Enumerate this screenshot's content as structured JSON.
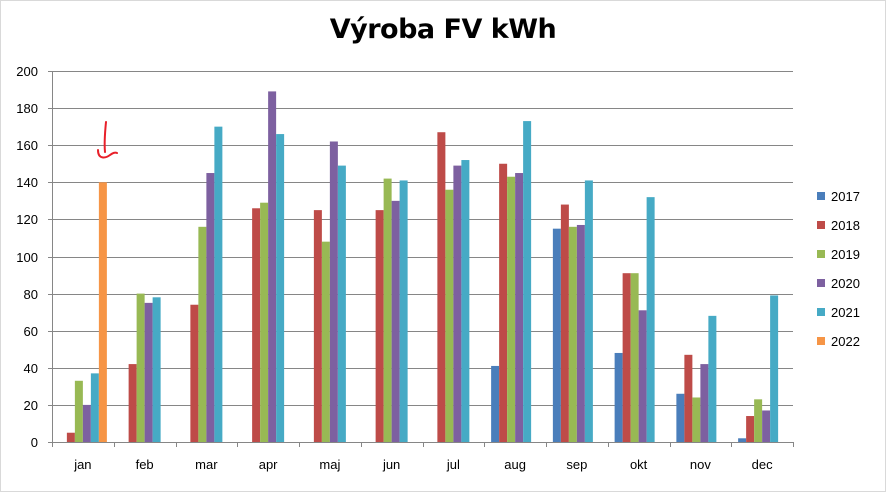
{
  "chart_data": {
    "type": "bar",
    "title": "Výroba FV kWh",
    "xlabel": "",
    "ylabel": "",
    "ylim": [
      0,
      200
    ],
    "yticks": [
      0,
      20,
      40,
      60,
      80,
      100,
      120,
      140,
      160,
      180,
      200
    ],
    "grid": true,
    "legend_position": "right",
    "categories": [
      "jan",
      "feb",
      "mar",
      "apr",
      "maj",
      "jun",
      "jul",
      "aug",
      "sep",
      "okt",
      "nov",
      "dec"
    ],
    "series": [
      {
        "name": "2017",
        "color": "#4a7ebb",
        "values": [
          0,
          0,
          0,
          0,
          0,
          0,
          0,
          41,
          115,
          48,
          26,
          2
        ]
      },
      {
        "name": "2018",
        "color": "#be4b48",
        "values": [
          5,
          42,
          74,
          126,
          125,
          125,
          167,
          150,
          128,
          91,
          47,
          14
        ]
      },
      {
        "name": "2019",
        "color": "#98b954",
        "values": [
          33,
          80,
          116,
          129,
          108,
          142,
          136,
          143,
          116,
          91,
          24,
          23
        ]
      },
      {
        "name": "2020",
        "color": "#7d60a0",
        "values": [
          20,
          75,
          145,
          189,
          162,
          130,
          149,
          145,
          117,
          71,
          42,
          17
        ]
      },
      {
        "name": "2021",
        "color": "#46aac5",
        "values": [
          37,
          78,
          170,
          166,
          149,
          141,
          152,
          173,
          141,
          132,
          68,
          79
        ]
      },
      {
        "name": "2022",
        "color": "#f69546",
        "values": [
          140,
          null,
          null,
          null,
          null,
          null,
          null,
          null,
          null,
          null,
          null,
          null
        ]
      }
    ]
  },
  "annotation": {
    "color": "#e8202a"
  }
}
